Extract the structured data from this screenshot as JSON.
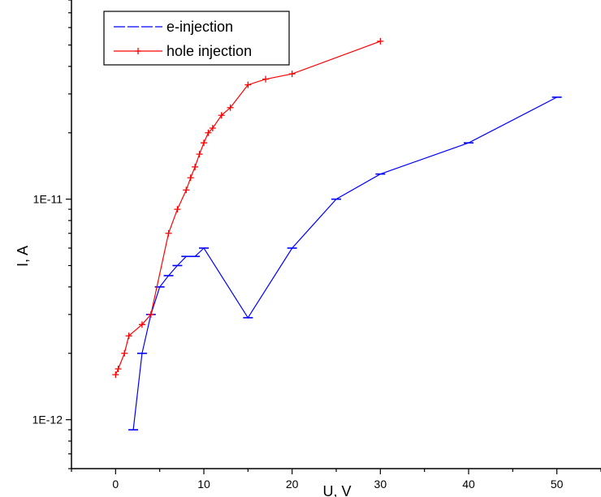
{
  "chart_data": {
    "type": "line",
    "xlabel": "U, V",
    "ylabel": "I, A",
    "x_scale": "linear",
    "y_scale": "log",
    "xlim": [
      -5,
      55
    ],
    "ylim": [
      6e-13,
      8e-11
    ],
    "x_ticks": [
      0,
      10,
      20,
      30,
      40,
      50
    ],
    "x_tick_labels": [
      "0",
      "10",
      "20",
      "30",
      "40",
      "50"
    ],
    "y_ticks": [
      1e-12,
      1e-11
    ],
    "y_tick_labels": [
      "1E-12",
      "1E-11"
    ],
    "grid": false,
    "legend_position": "top-left",
    "series": [
      {
        "name": "e-injection",
        "color": "#0000ff",
        "marker": "dash",
        "x": [
          2,
          3,
          4,
          5,
          6,
          7,
          8,
          9,
          10,
          15,
          20,
          25,
          30,
          40,
          50
        ],
        "y": [
          9e-13,
          2e-12,
          3e-12,
          4e-12,
          4.5e-12,
          5e-12,
          5.5e-12,
          5.5e-12,
          6e-12,
          2.9e-12,
          6e-12,
          1e-11,
          1.3e-11,
          1.8e-11,
          2.9e-11
        ]
      },
      {
        "name": "hole injection",
        "color": "#ff0000",
        "marker": "plus",
        "x": [
          0,
          0.3,
          1,
          1.5,
          3,
          4,
          6,
          7,
          8,
          8.5,
          9,
          9.5,
          10,
          10.5,
          11,
          12,
          13,
          15,
          17,
          20,
          30
        ],
        "y": [
          1.6e-12,
          1.7e-12,
          2e-12,
          2.4e-12,
          2.7e-12,
          3e-12,
          7e-12,
          9e-12,
          1.1e-11,
          1.25e-11,
          1.4e-11,
          1.6e-11,
          1.8e-11,
          2e-11,
          2.1e-11,
          2.4e-11,
          2.6e-11,
          3.3e-11,
          3.5e-11,
          3.7e-11,
          5.2e-11
        ]
      }
    ]
  }
}
